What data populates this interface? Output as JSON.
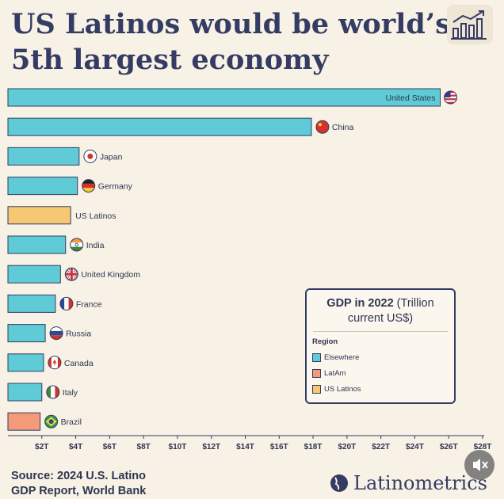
{
  "title": {
    "line1": "US Latinos would be world’s",
    "line2": "5th largest economy"
  },
  "colors": {
    "Elsewhere": "#5ecbd7",
    "LatAm": "#f49a78",
    "US Latinos": "#f6c873",
    "outline": "#343c63"
  },
  "chart_data": {
    "type": "bar",
    "orientation": "horizontal",
    "title": "GDP in 2022 (Trillion current US$)",
    "x_ticks": [
      "$2T",
      "$4T",
      "$6T",
      "$8T",
      "$10T",
      "$12T",
      "$14T",
      "$16T",
      "$18T",
      "$20T",
      "$22T",
      "$24T",
      "$26T",
      "$28T"
    ],
    "xlim": [
      0,
      28
    ],
    "categories": [
      "United States",
      "China",
      "Japan",
      "Germany",
      "US Latinos",
      "India",
      "United Kingdom",
      "France",
      "Russia",
      "Canada",
      "Italy",
      "Brazil"
    ],
    "values": [
      25.5,
      17.9,
      4.2,
      4.1,
      3.7,
      3.4,
      3.1,
      2.8,
      2.2,
      2.1,
      2.0,
      1.9
    ],
    "regions": [
      "Elsewhere",
      "Elsewhere",
      "Elsewhere",
      "Elsewhere",
      "US Latinos",
      "Elsewhere",
      "Elsewhere",
      "Elsewhere",
      "Elsewhere",
      "Elsewhere",
      "Elsewhere",
      "LatAm"
    ],
    "flags": [
      "us-flag",
      "china-flag",
      "japan-flag",
      "germany-flag",
      "",
      "india-flag",
      "uk-flag",
      "france-flag",
      "russia-flag",
      "canada-flag",
      "italy-flag",
      "brazil-flag"
    ],
    "legend": {
      "title_bold": "GDP in 2022",
      "title_rest": " (Trillion current US$)",
      "region_label": "Region",
      "items": [
        "Elsewhere",
        "LatAm",
        "US Latinos"
      ],
      "placement": "bottom-right"
    }
  },
  "source": {
    "line1": "Source: 2024 U.S. Latino",
    "line2": "GDP Report, World Bank"
  },
  "brand": {
    "name": "Latinometrics"
  }
}
